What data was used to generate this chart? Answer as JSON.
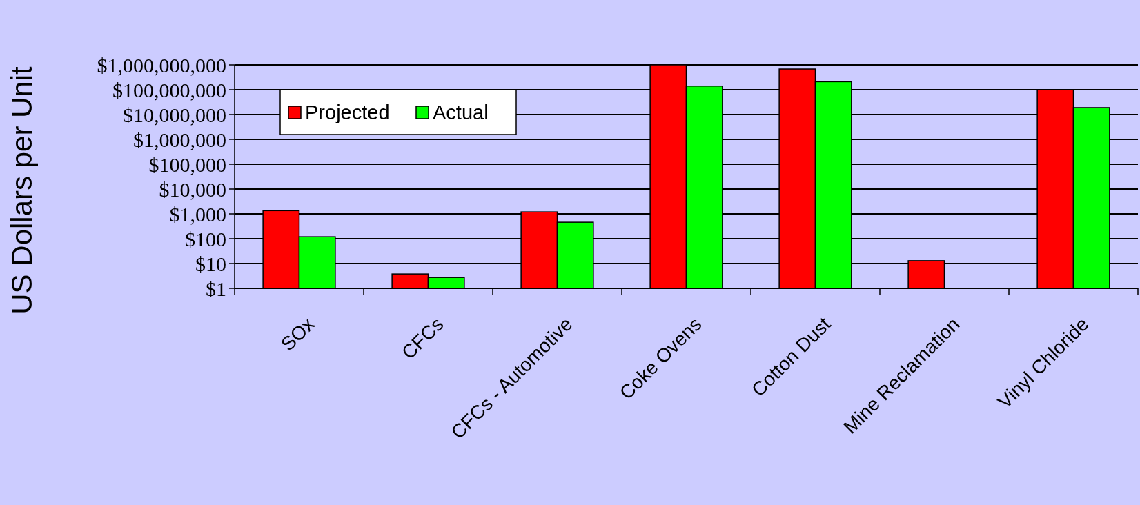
{
  "chart_data": {
    "type": "bar",
    "ylabel": "US Dollars per Unit",
    "log": true,
    "grid": "y",
    "legend": "top left",
    "categories": [
      "SOx",
      "CFCs",
      "CFCs - Automotive",
      "Coke Ovens",
      "Cotton Dust",
      "Mine Reclamation",
      "Vinyl Chloride"
    ],
    "series": [
      {
        "name": "Projected",
        "color": "#ff0000",
        "values": [
          1350,
          3.8,
          1200,
          1000000000,
          680000000,
          13,
          100000000
        ]
      },
      {
        "name": "Actual",
        "color": "#00ff00",
        "values": [
          120,
          2.75,
          460,
          140000000,
          210000000,
          null,
          19000000
        ]
      }
    ],
    "ylim": [
      1,
      1000000000
    ],
    "yticks": [
      {
        "value": 1,
        "label": "$1"
      },
      {
        "value": 10,
        "label": "$10"
      },
      {
        "value": 100,
        "label": "$100"
      },
      {
        "value": 1000,
        "label": "$1,000"
      },
      {
        "value": 10000,
        "label": "$10,000"
      },
      {
        "value": 100000,
        "label": "$100,000"
      },
      {
        "value": 1000000,
        "label": "$1,000,000"
      },
      {
        "value": 10000000,
        "label": "$10,000,000"
      },
      {
        "value": 100000000,
        "label": "$100,000,000"
      },
      {
        "value": 1000000000,
        "label": "$1,000,000,000"
      }
    ]
  }
}
